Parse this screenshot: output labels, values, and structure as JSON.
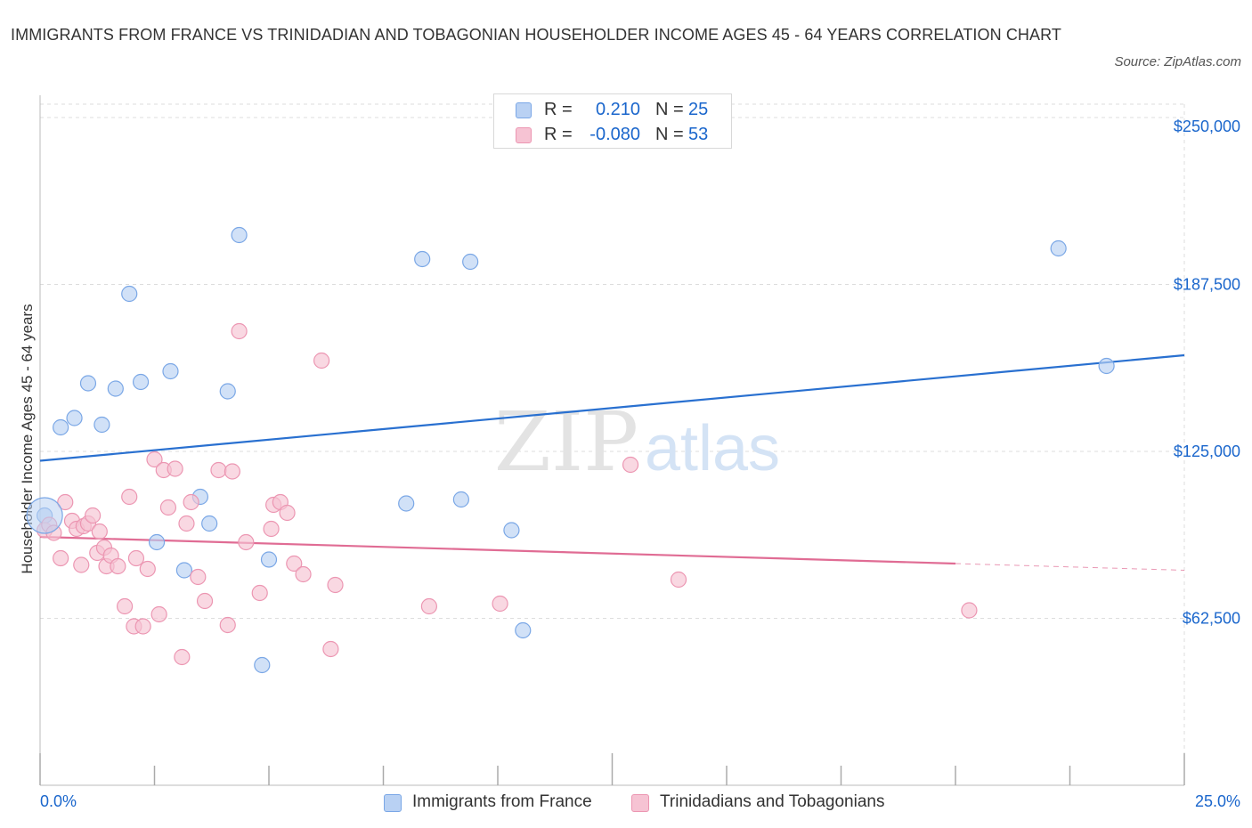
{
  "header": {
    "title": "IMMIGRANTS FROM FRANCE VS TRINIDADIAN AND TOBAGONIAN HOUSEHOLDER INCOME AGES 45 - 64 YEARS CORRELATION CHART",
    "source": "Source: ZipAtlas.com"
  },
  "legend": {
    "rows": [
      {
        "r_label": "R =",
        "r_value": "0.210",
        "n_label": "N =",
        "n_value": "25"
      },
      {
        "r_label": "R =",
        "r_value": "-0.080",
        "n_label": "N =",
        "n_value": "53"
      }
    ],
    "bottom": [
      "Immigrants from France",
      "Trinidadians and Tobagonians"
    ]
  },
  "watermark": {
    "zip": "ZIP",
    "atlas": "atlas"
  },
  "colors": {
    "blue_fill": "#b9d1f3",
    "blue_stroke": "#7aa7e6",
    "blue_line": "#2970d0",
    "pink_fill": "#f6c3d3",
    "pink_stroke": "#ec96b2",
    "pink_line": "#e06c94",
    "axis_label": "#1a66cc",
    "grid": "#dddddd"
  },
  "chart_data": {
    "type": "scatter",
    "title": "IMMIGRANTS FROM FRANCE VS TRINIDADIAN AND TOBAGONIAN HOUSEHOLDER INCOME AGES 45 - 64 YEARS CORRELATION CHART",
    "xlabel": "",
    "ylabel": "Householder Income Ages 45 - 64 years",
    "xlim": [
      0,
      25
    ],
    "ylim": [
      0,
      255000
    ],
    "x_tick_labels": [
      "0.0%",
      "25.0%"
    ],
    "y_ticks": [
      62500,
      125000,
      187500,
      250000
    ],
    "y_tick_labels": [
      "$62,500",
      "$125,000",
      "$187,500",
      "$250,000"
    ],
    "grid": true,
    "series": [
      {
        "name": "Immigrants from France",
        "color": "#7aa7e6",
        "points": [
          [
            0.1,
            101000
          ],
          [
            0.45,
            134000
          ],
          [
            0.75,
            137500
          ],
          [
            1.05,
            150500
          ],
          [
            1.35,
            135000
          ],
          [
            1.65,
            148500
          ],
          [
            1.95,
            184000
          ],
          [
            2.2,
            151000
          ],
          [
            2.55,
            91000
          ],
          [
            2.85,
            155000
          ],
          [
            3.15,
            80500
          ],
          [
            3.5,
            108000
          ],
          [
            3.7,
            98000
          ],
          [
            4.1,
            147500
          ],
          [
            4.35,
            206000
          ],
          [
            4.85,
            45000
          ],
          [
            5.0,
            84500
          ],
          [
            8.0,
            105500
          ],
          [
            8.35,
            197000
          ],
          [
            9.2,
            107000
          ],
          [
            9.4,
            196000
          ],
          [
            10.3,
            95500
          ],
          [
            10.55,
            58000
          ],
          [
            22.25,
            201000
          ],
          [
            23.3,
            157000
          ]
        ],
        "trend": {
          "x0": 0,
          "y0": 121500,
          "x1": 25,
          "y1": 161000
        }
      },
      {
        "name": "Trinidadians and Tobagonians",
        "color": "#ec96b2",
        "points": [
          [
            0.1,
            95500
          ],
          [
            0.2,
            97500
          ],
          [
            0.3,
            94500
          ],
          [
            0.45,
            85000
          ],
          [
            0.55,
            106000
          ],
          [
            0.7,
            99000
          ],
          [
            0.8,
            96000
          ],
          [
            0.9,
            82500
          ],
          [
            0.95,
            97000
          ],
          [
            1.05,
            98000
          ],
          [
            1.15,
            101000
          ],
          [
            1.25,
            87000
          ],
          [
            1.3,
            95000
          ],
          [
            1.4,
            89000
          ],
          [
            1.45,
            82000
          ],
          [
            1.55,
            86000
          ],
          [
            1.7,
            82000
          ],
          [
            1.85,
            67000
          ],
          [
            1.95,
            108000
          ],
          [
            2.05,
            59500
          ],
          [
            2.1,
            85000
          ],
          [
            2.25,
            59500
          ],
          [
            2.35,
            81000
          ],
          [
            2.5,
            122000
          ],
          [
            2.6,
            64000
          ],
          [
            2.7,
            118000
          ],
          [
            2.8,
            104000
          ],
          [
            2.95,
            118500
          ],
          [
            3.1,
            48000
          ],
          [
            3.2,
            98000
          ],
          [
            3.3,
            106000
          ],
          [
            3.45,
            78000
          ],
          [
            3.6,
            69000
          ],
          [
            3.9,
            118000
          ],
          [
            4.1,
            60000
          ],
          [
            4.2,
            117500
          ],
          [
            4.35,
            170000
          ],
          [
            4.5,
            91000
          ],
          [
            4.8,
            72000
          ],
          [
            5.05,
            96000
          ],
          [
            5.1,
            105000
          ],
          [
            5.25,
            106000
          ],
          [
            5.4,
            102000
          ],
          [
            5.55,
            83000
          ],
          [
            5.75,
            79000
          ],
          [
            6.15,
            159000
          ],
          [
            6.35,
            51000
          ],
          [
            6.45,
            75000
          ],
          [
            8.5,
            67000
          ],
          [
            10.05,
            68000
          ],
          [
            12.9,
            120000
          ],
          [
            13.95,
            77000
          ],
          [
            20.3,
            65500
          ]
        ],
        "trend": {
          "x0": 0,
          "y0": 93000,
          "x1": 20,
          "y1": 83000,
          "dashed_to_x": 25,
          "dashed_to_y": 80500
        }
      }
    ]
  }
}
